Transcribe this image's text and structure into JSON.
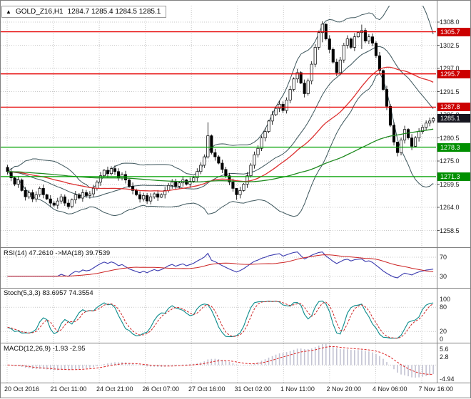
{
  "window": {
    "direction_icon": "▲",
    "symbol": "GOLD_Z16,H1",
    "quote_line": "1284.7 1285.4 1284.5 1285.1"
  },
  "chart_data": {
    "type": "candlestick",
    "title": "GOLD_Z16,H1",
    "symbol": "GOLD_Z16",
    "timeframe": "H1",
    "quote": {
      "open": "1284.7",
      "high": "1285.4",
      "low": "1284.5",
      "close": "1285.1"
    },
    "y_ticks": [
      "1308.0",
      "1302.5",
      "1297.0",
      "1291.5",
      "1286.0",
      "1280.5",
      "1275.0",
      "1269.5",
      "1264.0",
      "1258.5"
    ],
    "x_ticks": [
      "20 Oct 2016",
      "21 Oct 11:00",
      "24 Oct 21:00",
      "26 Oct 07:00",
      "27 Oct 16:00",
      "31 Oct 02:00",
      "1 Nov 11:00",
      "2 Nov 20:00",
      "4 Nov 06:00",
      "7 Nov 16:00"
    ],
    "levels": {
      "resistance": [
        "1305.7",
        "1295.7",
        "1287.8"
      ],
      "support": [
        "1278.3",
        "1271.3"
      ],
      "current": "1285.1"
    },
    "open_first": 1273.5,
    "closes": [
      1272.5,
      1271.0,
      1269.5,
      1270.5,
      1268.0,
      1266.5,
      1267.5,
      1266.0,
      1267.0,
      1268.5,
      1267.0,
      1266.0,
      1265.0,
      1264.5,
      1265.5,
      1266.5,
      1265.0,
      1264.2,
      1265.8,
      1267.0,
      1266.2,
      1267.5,
      1266.8,
      1267.2,
      1268.5,
      1270.0,
      1271.5,
      1272.8,
      1272.0,
      1273.2,
      1272.5,
      1271.0,
      1271.8,
      1270.5,
      1269.0,
      1268.0,
      1267.0,
      1266.0,
      1266.8,
      1265.5,
      1266.5,
      1267.2,
      1266.4,
      1267.0,
      1268.0,
      1269.2,
      1270.0,
      1269.0,
      1269.8,
      1270.5,
      1269.5,
      1270.2,
      1271.0,
      1272.5,
      1274.0,
      1276.0,
      1281.0,
      1277.0,
      1276.0,
      1274.5,
      1273.0,
      1271.5,
      1270.0,
      1268.5,
      1267.0,
      1268.0,
      1269.5,
      1271.5,
      1274.0,
      1276.5,
      1278.0,
      1280.5,
      1282.0,
      1284.5,
      1286.0,
      1287.5,
      1288.5,
      1287.0,
      1289.5,
      1292.0,
      1294.5,
      1296.0,
      1293.5,
      1291.0,
      1294.0,
      1298.0,
      1302.0,
      1305.5,
      1307.5,
      1304.0,
      1301.5,
      1298.5,
      1296.0,
      1299.0,
      1302.5,
      1304.0,
      1302.0,
      1304.5,
      1305.5,
      1306.0,
      1303.5,
      1304.5,
      1303.0,
      1300.0,
      1296.5,
      1292.0,
      1288.0,
      1283.5,
      1279.5,
      1277.0,
      1280.0,
      1282.5,
      1280.5,
      1278.5,
      1280.5,
      1282.0,
      1283.0,
      1284.0,
      1284.5,
      1285.1
    ],
    "wick_overrides": {
      "17": [
        1265.9,
        1263.6
      ],
      "56": [
        1284.2,
        1275.6
      ],
      "64": [
        1268.6,
        1265.8
      ],
      "88": [
        1308.2,
        1303.2
      ],
      "99": [
        1307.4,
        1301.6
      ],
      "109": [
        1278.6,
        1276.1
      ]
    },
    "overlays": {
      "bollinger_period": 20,
      "ma_fast_period": 34,
      "ma_slow_period": 90
    },
    "indicators": [
      {
        "name": "RSI",
        "label": "RSI(14) 47.2610 ->MA(18) 39.7539",
        "scale": [
          "70",
          "30"
        ],
        "levels": [
          70,
          30
        ]
      },
      {
        "name": "Stochastic",
        "label": "Stoch(5,3,3) 83.6957 74.3554",
        "scale": [
          "100",
          "80",
          "20",
          "0"
        ],
        "levels": [
          80,
          20
        ]
      },
      {
        "name": "MACD",
        "label": "MACD(12,26,9) -1.93 -2.95",
        "scale": [
          "5.6",
          "2.8",
          "-4.94"
        ],
        "levels": [
          0
        ]
      }
    ],
    "colors": {
      "bollinger": "#3d565c",
      "ma_fast": "#dd3030",
      "ma_slow": "#1f8a1f",
      "resistance": "#e60000",
      "support": "#00a000",
      "resistance_tag": "#cc0000",
      "support_tag": "#008f00",
      "current_tag": "#15151f",
      "candle_up": "#ffffff",
      "candle_down": "#000000",
      "candle_stroke": "#000000",
      "rsi": "#3a3aae",
      "rsi_ma": "#cc2222",
      "stoch_k": "#0c8c8c",
      "stoch_d": "#cc2222",
      "macd_hist": "#c2c2d2",
      "macd_signal": "#dd2222",
      "grid": "#c9c9c9",
      "frame": "#808080"
    }
  }
}
